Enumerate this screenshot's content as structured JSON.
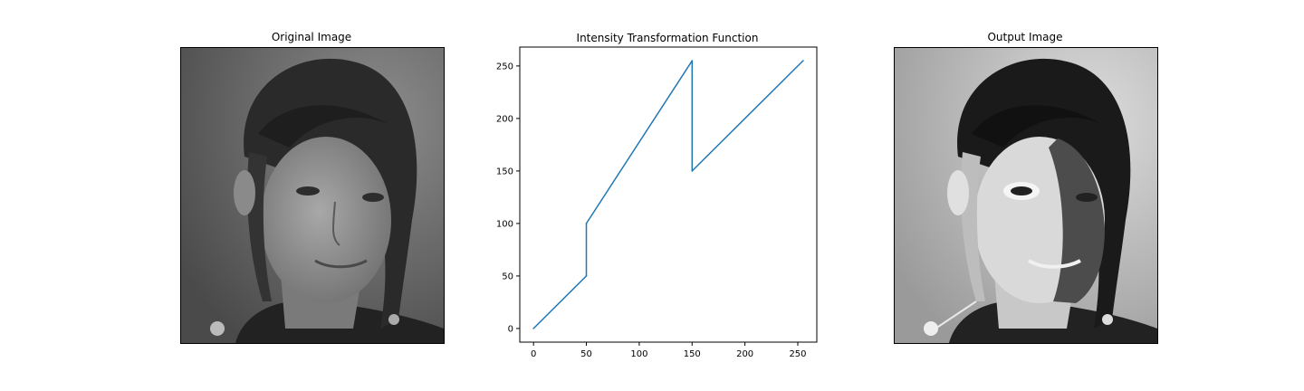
{
  "panels": {
    "original": {
      "title": "Original Image"
    },
    "chart": {
      "title": "Intensity Transformation Function"
    },
    "output": {
      "title": "Output Image"
    }
  },
  "colors": {
    "line": "#1f77b4",
    "axes": "#000000",
    "background": "#ffffff"
  },
  "chart_data": {
    "type": "line",
    "title": "Intensity Transformation Function",
    "xlabel": "",
    "ylabel": "",
    "x": [
      0,
      50,
      50,
      150,
      150,
      255
    ],
    "y": [
      0,
      50,
      100,
      255,
      150,
      255
    ],
    "xlim": [
      -13,
      268
    ],
    "ylim": [
      -13,
      268
    ],
    "xticks": [
      0,
      50,
      100,
      150,
      200,
      250
    ],
    "yticks": [
      0,
      50,
      100,
      150,
      200,
      250
    ],
    "grid": false,
    "series": [
      {
        "values": [
          0,
          50,
          100,
          255,
          150,
          255
        ]
      }
    ]
  }
}
